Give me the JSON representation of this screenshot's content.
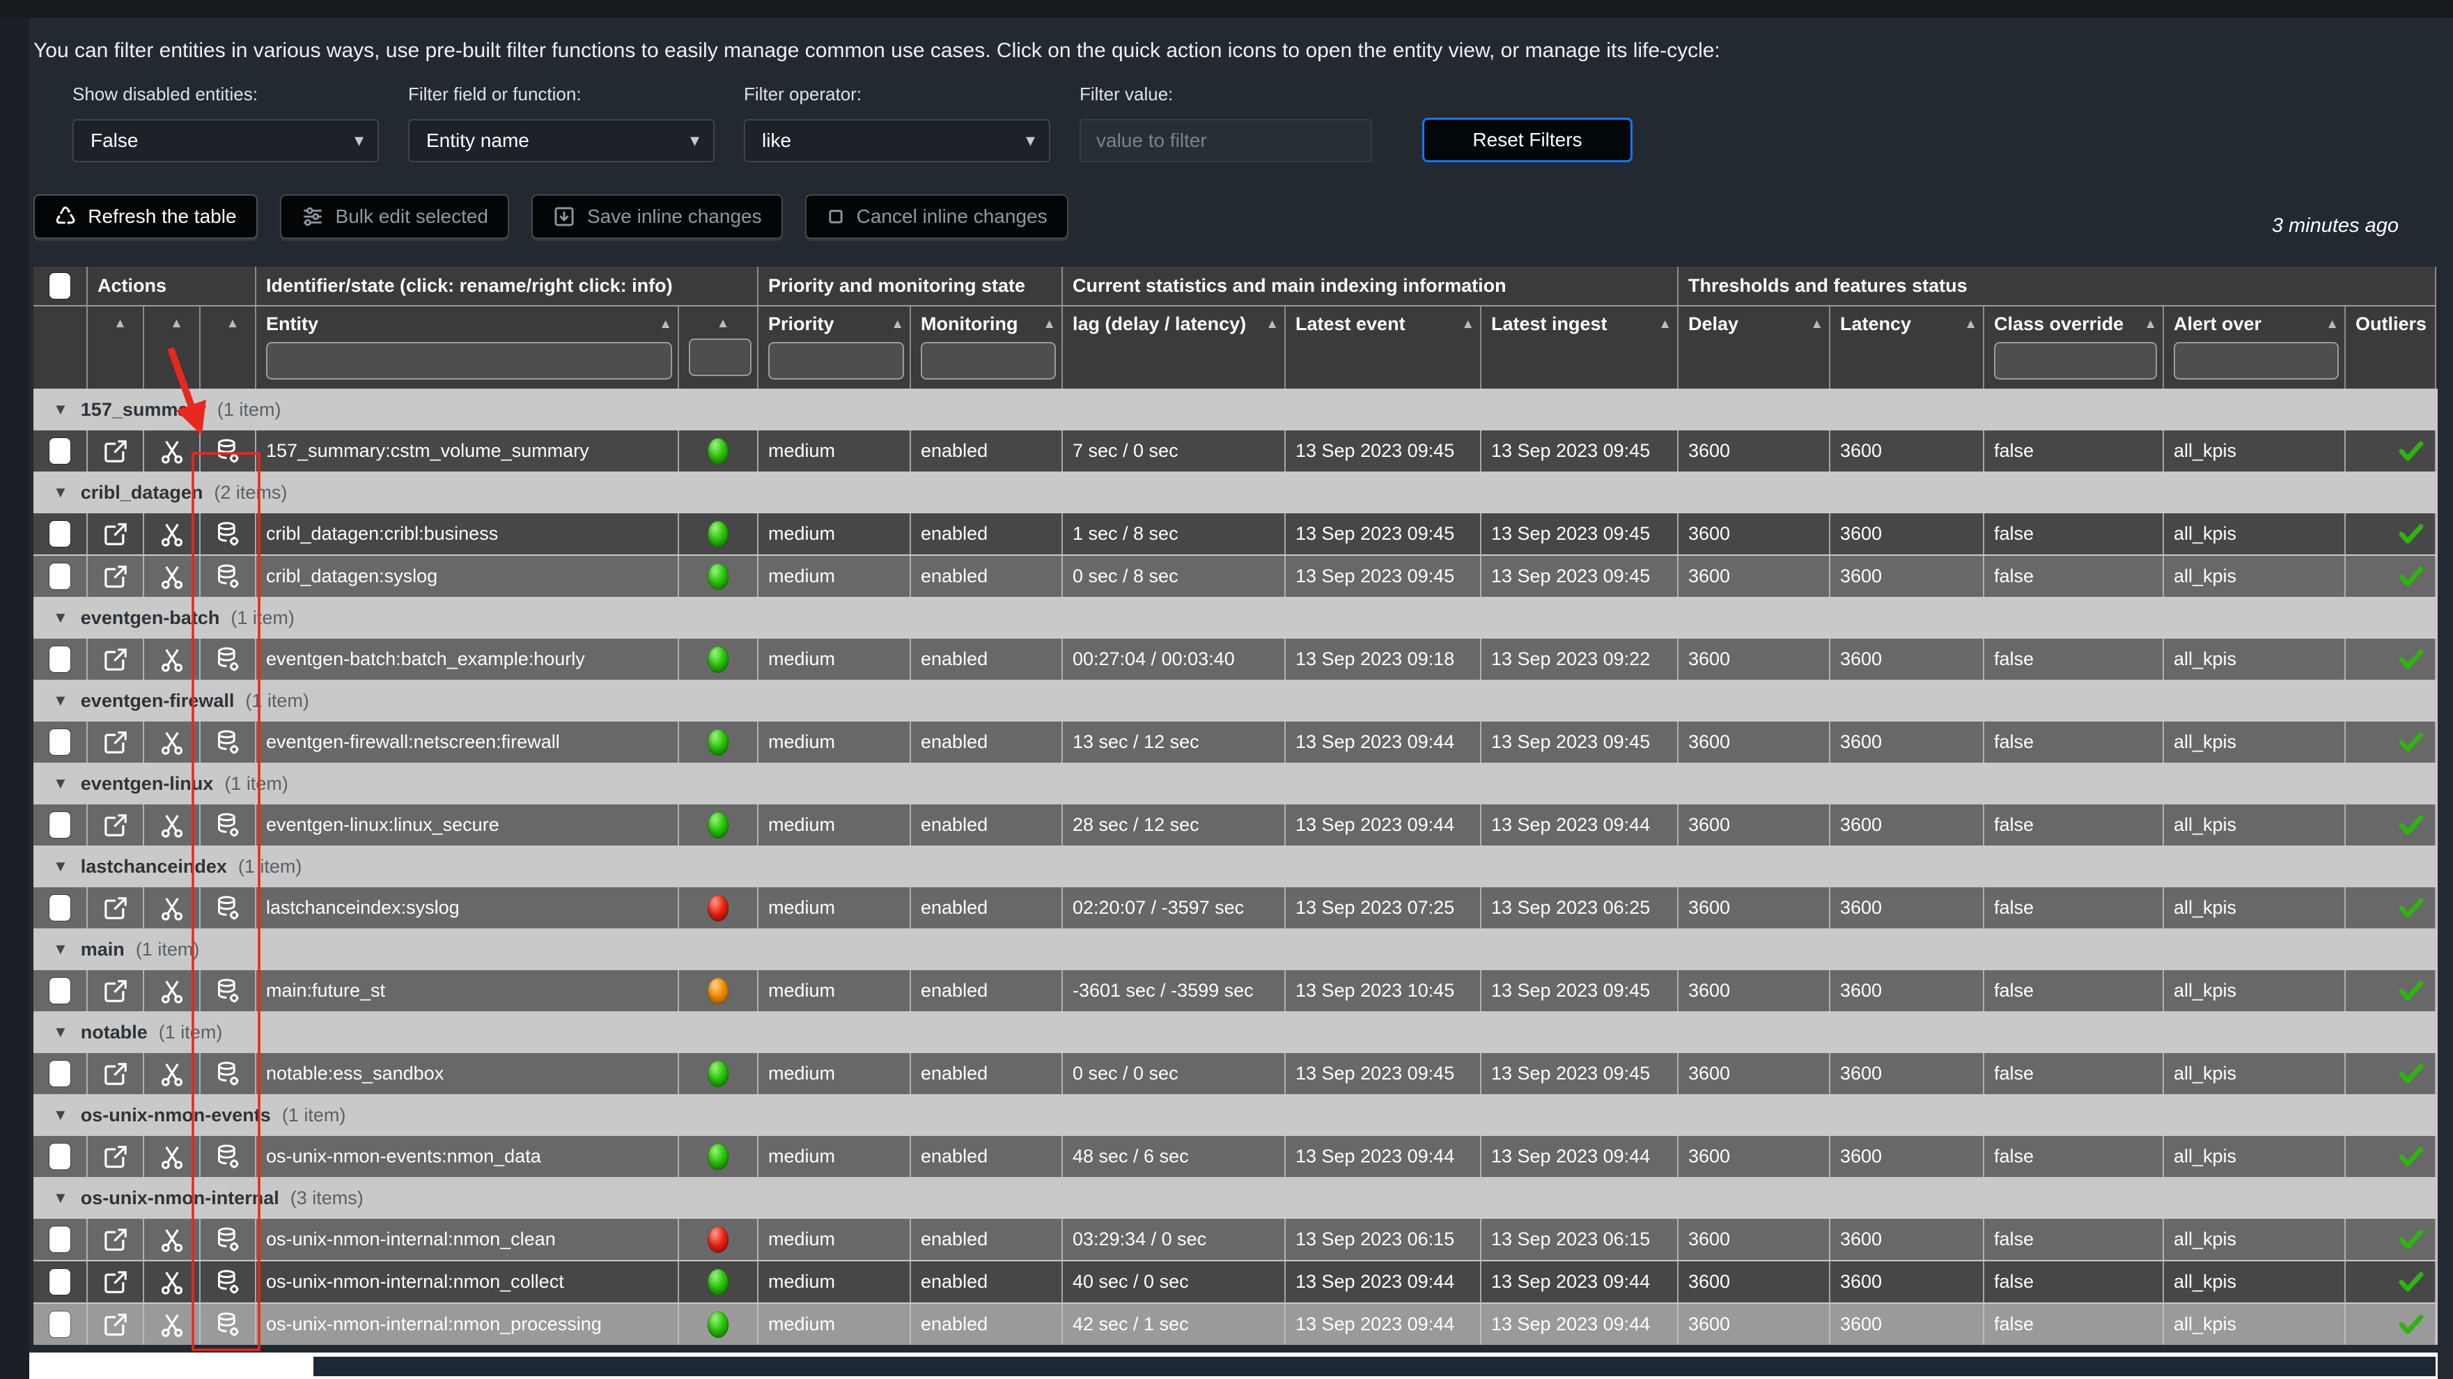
{
  "intro": "You can filter entities in various ways, use pre-built filter functions to easily manage common use cases. Click on the quick action icons to open the entity view, or manage its life-cycle:",
  "filters": {
    "show_disabled": {
      "label": "Show disabled entities:",
      "value": "False"
    },
    "field": {
      "label": "Filter field or function:",
      "value": "Entity name"
    },
    "operator": {
      "label": "Filter operator:",
      "value": "like"
    },
    "value": {
      "label": "Filter value:",
      "placeholder": "value to filter"
    },
    "reset_label": "Reset Filters"
  },
  "toolbar": {
    "refresh": "Refresh the table",
    "bulk_edit": "Bulk edit selected",
    "save": "Save inline changes",
    "cancel": "Cancel inline changes",
    "last_refresh": "3 minutes ago"
  },
  "table": {
    "column_groups": [
      {
        "id": "select",
        "label": "",
        "members": [
          "select"
        ]
      },
      {
        "id": "actions",
        "label": "Actions",
        "members": [
          "open",
          "manage",
          "data"
        ]
      },
      {
        "id": "identifier",
        "label": "Identifier/state (click: rename/right click: info)",
        "members": [
          "entity",
          "state"
        ]
      },
      {
        "id": "priority_state",
        "label": "Priority and monitoring state",
        "members": [
          "priority",
          "monitoring"
        ]
      },
      {
        "id": "current_stats",
        "label": "Current statistics and main indexing information",
        "members": [
          "lag",
          "latest_event",
          "latest_ingest"
        ]
      },
      {
        "id": "thresholds",
        "label": "Thresholds and features status",
        "members": [
          "delay",
          "latency",
          "class_override",
          "alert_over",
          "outliers"
        ]
      }
    ],
    "columns": [
      {
        "id": "select",
        "label": "",
        "sort": false,
        "filter": false
      },
      {
        "id": "open",
        "label": "",
        "sort": true,
        "filter": false
      },
      {
        "id": "manage",
        "label": "",
        "sort": true,
        "filter": false
      },
      {
        "id": "data",
        "label": "",
        "sort": true,
        "filter": false
      },
      {
        "id": "entity",
        "label": "Entity",
        "sort": true,
        "filter": true
      },
      {
        "id": "state",
        "label": "",
        "sort": true,
        "filter": true
      },
      {
        "id": "priority",
        "label": "Priority",
        "sort": true,
        "filter": true
      },
      {
        "id": "monitoring",
        "label": "Monitoring",
        "sort": true,
        "filter": true
      },
      {
        "id": "lag",
        "label": "lag (delay / latency)",
        "sort": true,
        "filter": false
      },
      {
        "id": "latest_event",
        "label": "Latest event",
        "sort": true,
        "filter": false
      },
      {
        "id": "latest_ingest",
        "label": "Latest ingest",
        "sort": true,
        "filter": false
      },
      {
        "id": "delay",
        "label": "Delay",
        "sort": true,
        "filter": false
      },
      {
        "id": "latency",
        "label": "Latency",
        "sort": true,
        "filter": false
      },
      {
        "id": "class_override",
        "label": "Class override",
        "sort": true,
        "filter": true
      },
      {
        "id": "alert_over",
        "label": "Alert over",
        "sort": true,
        "filter": true
      },
      {
        "id": "outliers",
        "label": "Outliers",
        "sort": false,
        "filter": false
      }
    ],
    "groups": [
      {
        "name": "157_summary",
        "count": "(1 item)",
        "rows": [
          {
            "entity": "157_summary:cstm_volume_summary",
            "status": "green",
            "priority": "medium",
            "monitoring": "enabled",
            "lag": "7 sec / 0 sec",
            "latest_event": "13 Sep 2023 09:45",
            "latest_ingest": "13 Sep 2023 09:45",
            "delay": "3600",
            "latency": "3600",
            "class_override": "false",
            "alert_over": "all_kpis",
            "outliers": "check",
            "shade": "dark"
          }
        ]
      },
      {
        "name": "cribl_datagen",
        "count": "(2 items)",
        "rows": [
          {
            "entity": "cribl_datagen:cribl:business",
            "status": "green",
            "priority": "medium",
            "monitoring": "enabled",
            "lag": "1 sec / 8 sec",
            "latest_event": "13 Sep 2023 09:45",
            "latest_ingest": "13 Sep 2023 09:45",
            "delay": "3600",
            "latency": "3600",
            "class_override": "false",
            "alert_over": "all_kpis",
            "outliers": "check",
            "shade": "dark"
          },
          {
            "entity": "cribl_datagen:syslog",
            "status": "green",
            "priority": "medium",
            "monitoring": "enabled",
            "lag": "0 sec / 8 sec",
            "latest_event": "13 Sep 2023 09:45",
            "latest_ingest": "13 Sep 2023 09:45",
            "delay": "3600",
            "latency": "3600",
            "class_override": "false",
            "alert_over": "all_kpis",
            "outliers": "check",
            "shade": "light"
          }
        ]
      },
      {
        "name": "eventgen-batch",
        "count": "(1 item)",
        "rows": [
          {
            "entity": "eventgen-batch:batch_example:hourly",
            "status": "green",
            "priority": "medium",
            "monitoring": "enabled",
            "lag": "00:27:04 / 00:03:40",
            "latest_event": "13 Sep 2023 09:18",
            "latest_ingest": "13 Sep 2023 09:22",
            "delay": "3600",
            "latency": "3600",
            "class_override": "false",
            "alert_over": "all_kpis",
            "outliers": "check",
            "shade": "light"
          }
        ]
      },
      {
        "name": "eventgen-firewall",
        "count": "(1 item)",
        "rows": [
          {
            "entity": "eventgen-firewall:netscreen:firewall",
            "status": "green",
            "priority": "medium",
            "monitoring": "enabled",
            "lag": "13 sec / 12 sec",
            "latest_event": "13 Sep 2023 09:44",
            "latest_ingest": "13 Sep 2023 09:45",
            "delay": "3600",
            "latency": "3600",
            "class_override": "false",
            "alert_over": "all_kpis",
            "outliers": "check",
            "shade": "light"
          }
        ]
      },
      {
        "name": "eventgen-linux",
        "count": "(1 item)",
        "rows": [
          {
            "entity": "eventgen-linux:linux_secure",
            "status": "green",
            "priority": "medium",
            "monitoring": "enabled",
            "lag": "28 sec / 12 sec",
            "latest_event": "13 Sep 2023 09:44",
            "latest_ingest": "13 Sep 2023 09:44",
            "delay": "3600",
            "latency": "3600",
            "class_override": "false",
            "alert_over": "all_kpis",
            "outliers": "check",
            "shade": "light"
          }
        ]
      },
      {
        "name": "lastchanceindex",
        "count": "(1 item)",
        "rows": [
          {
            "entity": "lastchanceindex:syslog",
            "status": "red",
            "priority": "medium",
            "monitoring": "enabled",
            "lag": "02:20:07 / -3597 sec",
            "latest_event": "13 Sep 2023 07:25",
            "latest_ingest": "13 Sep 2023 06:25",
            "delay": "3600",
            "latency": "3600",
            "class_override": "false",
            "alert_over": "all_kpis",
            "outliers": "check",
            "shade": "light"
          }
        ]
      },
      {
        "name": "main",
        "count": "(1 item)",
        "rows": [
          {
            "entity": "main:future_st",
            "status": "orange",
            "priority": "medium",
            "monitoring": "enabled",
            "lag": "-3601 sec / -3599 sec",
            "latest_event": "13 Sep 2023 10:45",
            "latest_ingest": "13 Sep 2023 09:45",
            "delay": "3600",
            "latency": "3600",
            "class_override": "false",
            "alert_over": "all_kpis",
            "outliers": "check",
            "shade": "light"
          }
        ]
      },
      {
        "name": "notable",
        "count": "(1 item)",
        "rows": [
          {
            "entity": "notable:ess_sandbox",
            "status": "green",
            "priority": "medium",
            "monitoring": "enabled",
            "lag": "0 sec / 0 sec",
            "latest_event": "13 Sep 2023 09:45",
            "latest_ingest": "13 Sep 2023 09:45",
            "delay": "3600",
            "latency": "3600",
            "class_override": "false",
            "alert_over": "all_kpis",
            "outliers": "check",
            "shade": "light"
          }
        ]
      },
      {
        "name": "os-unix-nmon-events",
        "count": "(1 item)",
        "rows": [
          {
            "entity": "os-unix-nmon-events:nmon_data",
            "status": "green",
            "priority": "medium",
            "monitoring": "enabled",
            "lag": "48 sec / 6 sec",
            "latest_event": "13 Sep 2023 09:44",
            "latest_ingest": "13 Sep 2023 09:44",
            "delay": "3600",
            "latency": "3600",
            "class_override": "false",
            "alert_over": "all_kpis",
            "outliers": "check",
            "shade": "light"
          }
        ]
      },
      {
        "name": "os-unix-nmon-internal",
        "count": "(3 items)",
        "rows": [
          {
            "entity": "os-unix-nmon-internal:nmon_clean",
            "status": "red",
            "priority": "medium",
            "monitoring": "enabled",
            "lag": "03:29:34 / 0 sec",
            "latest_event": "13 Sep 2023 06:15",
            "latest_ingest": "13 Sep 2023 06:15",
            "delay": "3600",
            "latency": "3600",
            "class_override": "false",
            "alert_over": "all_kpis",
            "outliers": "check",
            "shade": "light"
          },
          {
            "entity": "os-unix-nmon-internal:nmon_collect",
            "status": "green",
            "priority": "medium",
            "monitoring": "enabled",
            "lag": "40 sec / 0 sec",
            "latest_event": "13 Sep 2023 09:44",
            "latest_ingest": "13 Sep 2023 09:44",
            "delay": "3600",
            "latency": "3600",
            "class_override": "false",
            "alert_over": "all_kpis",
            "outliers": "check",
            "shade": "dark"
          },
          {
            "entity": "os-unix-nmon-internal:nmon_processing",
            "status": "green",
            "priority": "medium",
            "monitoring": "enabled",
            "lag": "42 sec / 1 sec",
            "latest_event": "13 Sep 2023 09:44",
            "latest_ingest": "13 Sep 2023 09:44",
            "delay": "3600",
            "latency": "3600",
            "class_override": "false",
            "alert_over": "all_kpis",
            "outliers": "check",
            "shade": "lighter"
          }
        ]
      }
    ]
  },
  "colors": {
    "status_green": "#1db000",
    "status_red": "#e31212",
    "status_orange": "#f28a00",
    "check_green": "#2eb411",
    "annotation_red": "#e8281e",
    "reset_border_blue": "#1d73f4"
  }
}
